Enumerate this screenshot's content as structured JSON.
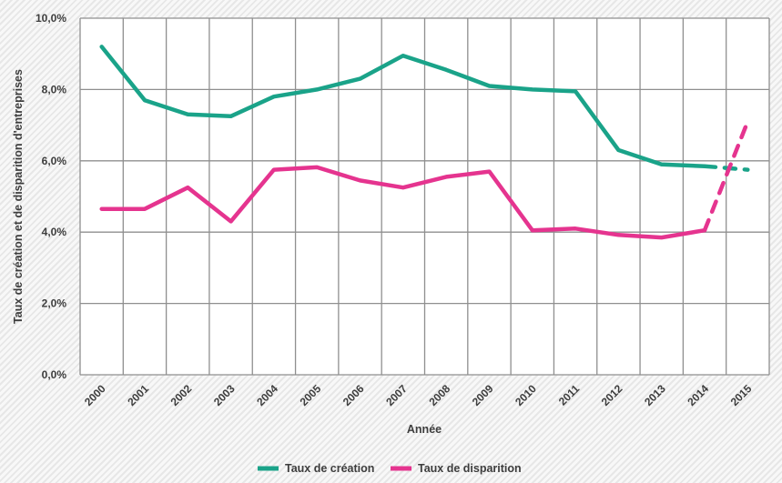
{
  "chart_data": {
    "type": "line",
    "x": [
      "2000",
      "2001",
      "2002",
      "2003",
      "2004",
      "2005",
      "2006",
      "2007",
      "2008",
      "2009",
      "2010",
      "2011",
      "2012",
      "2013",
      "2014",
      "2015"
    ],
    "xlabel": "Année",
    "ylabel": "Taux de création et de disparition d'entreprises",
    "ylim": [
      0,
      10
    ],
    "yticks": [
      "0,0%",
      "2,0%",
      "4,0%",
      "6,0%",
      "8,0%",
      "10,0%"
    ],
    "grid": true,
    "legend_position": "bottom",
    "series": [
      {
        "name": "Taux de création",
        "color": "#1aa389",
        "values": [
          9.2,
          7.7,
          7.3,
          7.25,
          7.8,
          8.0,
          8.3,
          8.95,
          8.55,
          8.1,
          8.0,
          7.95,
          6.3,
          5.9,
          5.85,
          5.75
        ],
        "dashed_from_index": 14
      },
      {
        "name": "Taux de disparition",
        "color": "#e5348f",
        "values": [
          4.65,
          4.65,
          5.25,
          4.3,
          5.75,
          5.82,
          5.45,
          5.25,
          5.55,
          5.7,
          4.05,
          4.1,
          3.92,
          3.85,
          4.05,
          7.1
        ],
        "dashed_from_index": 14
      }
    ]
  }
}
